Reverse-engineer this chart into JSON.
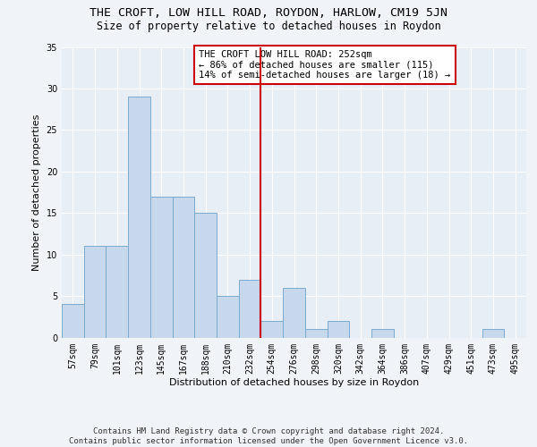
{
  "title": "THE CROFT, LOW HILL ROAD, ROYDON, HARLOW, CM19 5JN",
  "subtitle": "Size of property relative to detached houses in Roydon",
  "xlabel": "Distribution of detached houses by size in Roydon",
  "ylabel": "Number of detached properties",
  "bar_labels": [
    "57sqm",
    "79sqm",
    "101sqm",
    "123sqm",
    "145sqm",
    "167sqm",
    "188sqm",
    "210sqm",
    "232sqm",
    "254sqm",
    "276sqm",
    "298sqm",
    "320sqm",
    "342sqm",
    "364sqm",
    "386sqm",
    "407sqm",
    "429sqm",
    "451sqm",
    "473sqm",
    "495sqm"
  ],
  "bar_heights": [
    4,
    11,
    11,
    29,
    17,
    17,
    15,
    5,
    7,
    2,
    6,
    1,
    2,
    0,
    1,
    0,
    0,
    0,
    0,
    1,
    0
  ],
  "bar_color": "#c8d8ec",
  "bar_edgecolor": "#7aaad0",
  "vline_x_idx": 9,
  "vline_color": "#cc0000",
  "annotation_text": "THE CROFT LOW HILL ROAD: 252sqm\n← 86% of detached houses are smaller (115)\n14% of semi-detached houses are larger (18) →",
  "ylim": [
    0,
    35
  ],
  "yticks": [
    0,
    5,
    10,
    15,
    20,
    25,
    30,
    35
  ],
  "fig_bg_color": "#f0f4f8",
  "ax_bg_color": "#e8eef5",
  "grid_color": "#ffffff",
  "footer": "Contains HM Land Registry data © Crown copyright and database right 2024.\nContains public sector information licensed under the Open Government Licence v3.0.",
  "title_fontsize": 9.5,
  "subtitle_fontsize": 8.5,
  "xlabel_fontsize": 8,
  "ylabel_fontsize": 8,
  "tick_fontsize": 7,
  "annotation_fontsize": 7.5,
  "footer_fontsize": 6.5
}
